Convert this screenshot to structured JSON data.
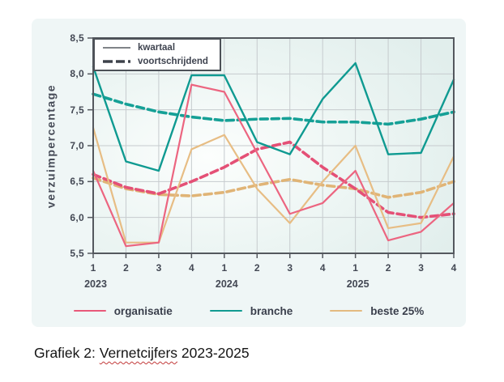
{
  "caption": {
    "prefix": "Grafiek 2: ",
    "misspelled_word": "Vernetcijfers",
    "suffix": " 2023-2025"
  },
  "y_axis": {
    "title": "verzuimpercentage",
    "tick_labels": [
      "8,5",
      "8,0",
      "7,5",
      "7,0",
      "6,5",
      "6,0",
      "5,5"
    ],
    "tick_values": [
      8.5,
      8.0,
      7.5,
      7.0,
      6.5,
      6.0,
      5.5
    ]
  },
  "x_axis": {
    "quarter_labels": [
      "1",
      "2",
      "3",
      "4",
      "1",
      "2",
      "3",
      "4",
      "1",
      "2",
      "3",
      "4"
    ],
    "years": [
      {
        "label": "2023",
        "quarter_index": 0
      },
      {
        "label": "2024",
        "quarter_index": 4
      },
      {
        "label": "2025",
        "quarter_index": 8
      }
    ]
  },
  "style_legend": {
    "items": [
      {
        "label": "kwartaal",
        "style": "solid"
      },
      {
        "label": "voortschrijdend",
        "style": "dashed"
      }
    ]
  },
  "series_legend": [
    {
      "label": "organisatie",
      "color": "#e8597a"
    },
    {
      "label": "branche",
      "color": "#119a91"
    },
    {
      "label": "beste 25%",
      "color": "#e3ba80"
    }
  ],
  "colors": {
    "card_bg": "#eff6f6",
    "plot_bg_center": "#fcfefd",
    "plot_bg_mid": "#ecf5f3",
    "plot_bg_edge": "#e1eeec",
    "grid": "#c6cbce",
    "axis": "#54585e",
    "label_text": "#434854"
  },
  "chart_data": {
    "type": "line",
    "title": "",
    "ylabel": "verzuimpercentage",
    "ylim": [
      5.5,
      8.5
    ],
    "y_grid_step": 0.5,
    "grid": true,
    "x": [
      "2023 Q1",
      "2023 Q2",
      "2023 Q3",
      "2023 Q4",
      "2024 Q1",
      "2024 Q2",
      "2024 Q3",
      "2024 Q4",
      "2025 Q1",
      "2025 Q2",
      "2025 Q3",
      "2025 Q4"
    ],
    "series": [
      {
        "name": "beste 25% voortschrijdend",
        "group": "beste 25%",
        "line": "voortschrijdend",
        "color": "#e0b476",
        "style": "dashed",
        "width": 3.6,
        "values": [
          6.55,
          6.4,
          6.32,
          6.3,
          6.35,
          6.45,
          6.53,
          6.45,
          6.4,
          6.28,
          6.35,
          6.5
        ]
      },
      {
        "name": "organisatie voortschrijdend",
        "group": "organisatie",
        "line": "voortschrijdend",
        "color": "#e45076",
        "style": "dashed",
        "width": 3.6,
        "values": [
          6.6,
          6.42,
          6.33,
          6.5,
          6.7,
          6.95,
          7.05,
          6.7,
          6.4,
          6.07,
          6.0,
          6.05
        ]
      },
      {
        "name": "branche voortschrijdend",
        "group": "branche",
        "line": "voortschrijdend",
        "color": "#15a096",
        "style": "dashed",
        "width": 3.6,
        "values": [
          7.72,
          7.58,
          7.47,
          7.4,
          7.35,
          7.37,
          7.38,
          7.33,
          7.33,
          7.3,
          7.37,
          7.47
        ]
      },
      {
        "name": "beste 25% kwartaal",
        "group": "beste 25%",
        "line": "kwartaal",
        "color": "#e7bd84",
        "style": "solid",
        "width": 2.2,
        "values": [
          7.25,
          5.65,
          5.65,
          6.95,
          7.15,
          6.4,
          5.92,
          6.5,
          7.0,
          5.85,
          5.92,
          6.85
        ]
      },
      {
        "name": "organisatie kwartaal",
        "group": "organisatie",
        "line": "kwartaal",
        "color": "#ec6580",
        "style": "solid",
        "width": 2.2,
        "values": [
          6.65,
          5.6,
          5.65,
          7.85,
          7.75,
          6.9,
          6.05,
          6.2,
          6.65,
          5.68,
          5.8,
          6.2
        ]
      },
      {
        "name": "branche kwartaal",
        "group": "branche",
        "line": "kwartaal",
        "color": "#0f9a91",
        "style": "solid",
        "width": 2.4,
        "values": [
          8.1,
          6.78,
          6.65,
          7.98,
          7.98,
          7.05,
          6.88,
          7.65,
          8.15,
          6.88,
          6.9,
          7.92
        ]
      }
    ]
  }
}
